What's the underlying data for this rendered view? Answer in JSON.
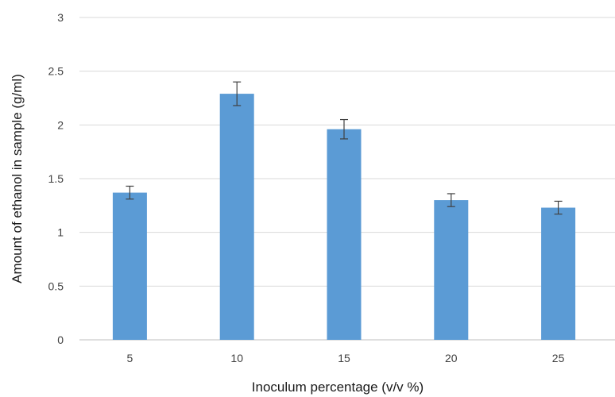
{
  "chart_data": {
    "type": "bar",
    "title": "",
    "xlabel": "Inoculum percentage (v/v %)",
    "ylabel": "Amount of ethanol in sample (g/ml)",
    "categories": [
      "5",
      "10",
      "15",
      "20",
      "25"
    ],
    "series": [
      {
        "values": [
          1.37,
          2.29,
          1.96,
          1.3,
          1.23
        ],
        "error": [
          0.06,
          0.11,
          0.09,
          0.06,
          0.06
        ],
        "color": "#5b9bd5"
      }
    ],
    "ylim": [
      0,
      3
    ],
    "yticks": [
      "0",
      "0.5",
      "1",
      "1.5",
      "2",
      "2.5",
      "3"
    ],
    "grid": true,
    "legend": "none"
  }
}
